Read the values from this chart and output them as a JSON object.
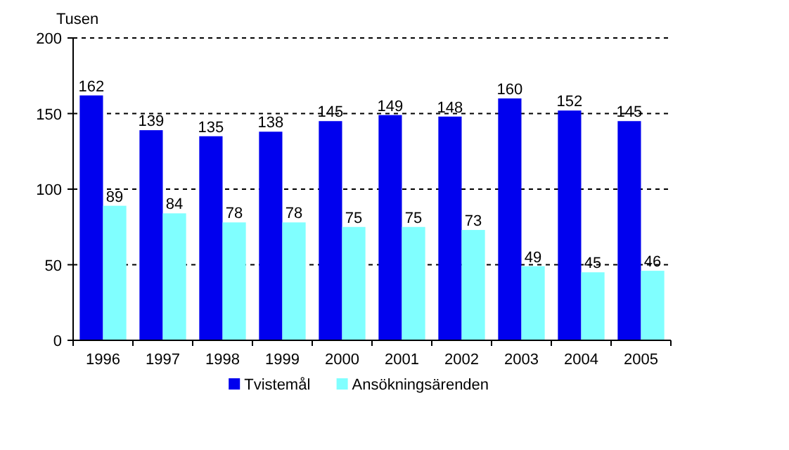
{
  "chart_data": {
    "type": "bar",
    "ylabel": "Tusen",
    "categories": [
      "1996",
      "1997",
      "1998",
      "1999",
      "2000",
      "2001",
      "2002",
      "2003",
      "2004",
      "2005"
    ],
    "series": [
      {
        "name": "Tvistemål",
        "color": "#0000ee",
        "values": [
          162,
          139,
          135,
          138,
          145,
          149,
          148,
          160,
          152,
          145
        ]
      },
      {
        "name": "Ansökningsärenden",
        "color": "#80ffff",
        "values": [
          89,
          84,
          78,
          78,
          75,
          75,
          73,
          49,
          45,
          46
        ]
      }
    ],
    "ylim": [
      0,
      200
    ],
    "yticks": [
      0,
      50,
      100,
      150,
      200
    ],
    "grid": "y",
    "legend": "bottom",
    "data_labels": true
  }
}
